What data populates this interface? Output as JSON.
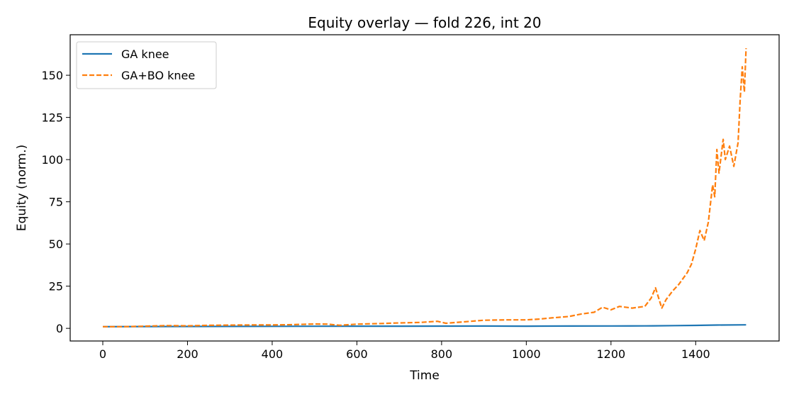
{
  "chart_data": {
    "type": "line",
    "title": "Equity overlay — fold 226, int 20",
    "xlabel": "Time",
    "ylabel": "Equity (norm.)",
    "xlim": [
      -77,
      1597
    ],
    "ylim": [
      -7.5,
      174
    ],
    "xticks": [
      0,
      200,
      400,
      600,
      800,
      1000,
      1200,
      1400
    ],
    "yticks": [
      0,
      25,
      50,
      75,
      100,
      125,
      150
    ],
    "grid": false,
    "legend_position": "top-left",
    "series": [
      {
        "name": "GA knee",
        "color": "#1f77b4",
        "style": "solid",
        "x": [
          0,
          100,
          200,
          300,
          400,
          500,
          600,
          700,
          800,
          900,
          1000,
          1100,
          1200,
          1280,
          1300,
          1350,
          1400,
          1450,
          1519
        ],
        "y": [
          1.0,
          1.05,
          1.1,
          1.15,
          1.2,
          1.25,
          1.28,
          1.3,
          1.32,
          1.35,
          1.3,
          1.35,
          1.4,
          1.45,
          1.5,
          1.6,
          1.75,
          1.95,
          2.1
        ]
      },
      {
        "name": "GA+BO knee",
        "color": "#ff7f0e",
        "style": "dashed",
        "x": [
          0,
          50,
          100,
          150,
          200,
          250,
          300,
          350,
          400,
          450,
          500,
          530,
          560,
          600,
          650,
          700,
          750,
          790,
          810,
          850,
          900,
          950,
          1000,
          1030,
          1060,
          1100,
          1130,
          1160,
          1180,
          1200,
          1220,
          1250,
          1280,
          1295,
          1305,
          1320,
          1330,
          1345,
          1360,
          1380,
          1390,
          1400,
          1410,
          1420,
          1430,
          1440,
          1445,
          1450,
          1455,
          1465,
          1470,
          1480,
          1490,
          1500,
          1505,
          1510,
          1515,
          1519
        ],
        "y": [
          1.0,
          1.0,
          1.3,
          1.6,
          1.5,
          1.8,
          1.9,
          2.0,
          2.0,
          2.2,
          2.6,
          2.5,
          1.8,
          2.5,
          2.8,
          3.2,
          3.5,
          4.2,
          3.0,
          3.8,
          4.8,
          5.0,
          5.0,
          5.5,
          6.2,
          7.0,
          8.5,
          9.5,
          12.5,
          11.0,
          13.0,
          12.0,
          13.0,
          18.0,
          24.0,
          12.0,
          17.0,
          22.0,
          26.0,
          33.0,
          38.0,
          47.0,
          58.0,
          52.0,
          63.0,
          85.0,
          78.0,
          106.0,
          92.0,
          112.0,
          100.0,
          108.0,
          96.0,
          110.0,
          135.0,
          155.0,
          140.0,
          166.0
        ]
      }
    ]
  }
}
